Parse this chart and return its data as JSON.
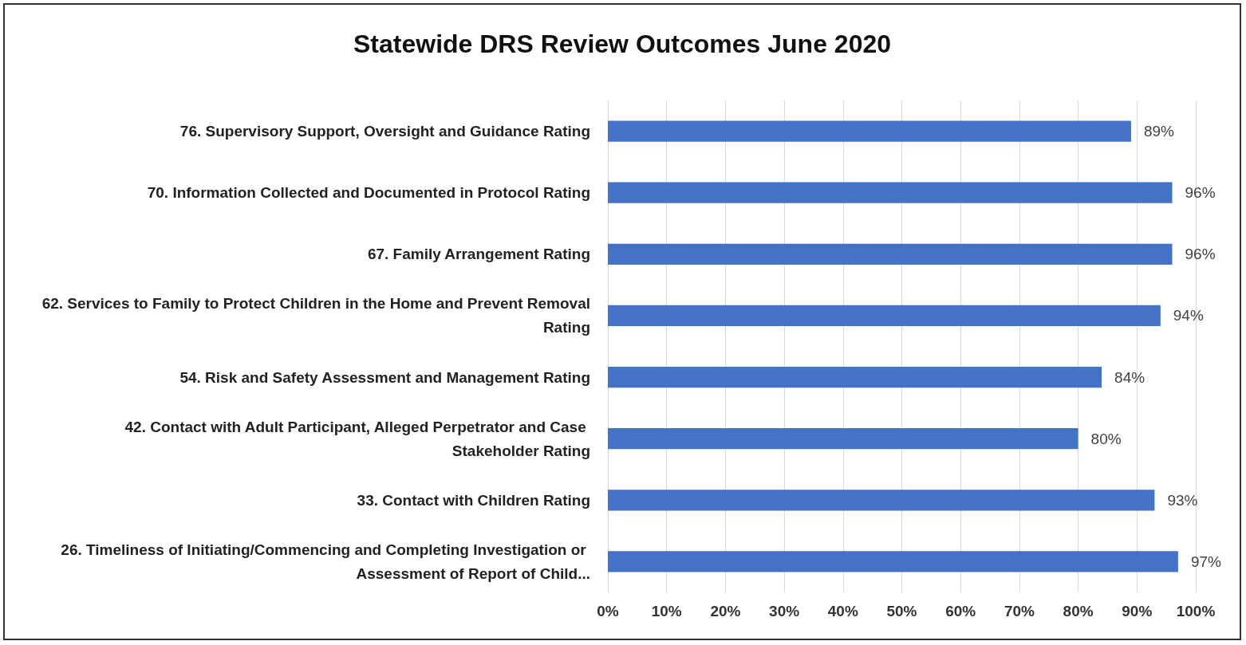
{
  "chart_data": {
    "type": "bar",
    "orientation": "horizontal",
    "title": "Statewide DRS Review Outcomes June 2020",
    "categories": [
      "76. Supervisory Support, Oversight and Guidance Rating",
      "70. Information Collected and Documented in Protocol Rating",
      "67. Family Arrangement Rating",
      "62. Services to Family to Protect Children in the Home and Prevent Removal Rating",
      "54. Risk and Safety Assessment and Management Rating",
      "42. Contact with Adult Participant, Alleged Perpetrator and Case Stakeholder Rating",
      "33. Contact with Children Rating",
      "26. Timeliness of Initiating/Commencing and Completing Investigation or Assessment of Report of Child..."
    ],
    "values": [
      89,
      96,
      96,
      94,
      84,
      80,
      93,
      97
    ],
    "value_labels": [
      "89%",
      "96%",
      "96%",
      "94%",
      "84%",
      "80%",
      "93%",
      "97%"
    ],
    "color": "#4472c4",
    "xlim": [
      0,
      100
    ],
    "xticks": [
      {
        "value": 0,
        "label": "0%"
      },
      {
        "value": 10,
        "label": "10%"
      },
      {
        "value": 20,
        "label": "20%"
      },
      {
        "value": 30,
        "label": "30%"
      },
      {
        "value": 40,
        "label": "40%"
      },
      {
        "value": 50,
        "label": "50%"
      },
      {
        "value": 60,
        "label": "60%"
      },
      {
        "value": 70,
        "label": "70%"
      },
      {
        "value": 80,
        "label": "80%"
      },
      {
        "value": 90,
        "label": "90%"
      },
      {
        "value": 100,
        "label": "100%"
      }
    ],
    "grid": "x"
  }
}
